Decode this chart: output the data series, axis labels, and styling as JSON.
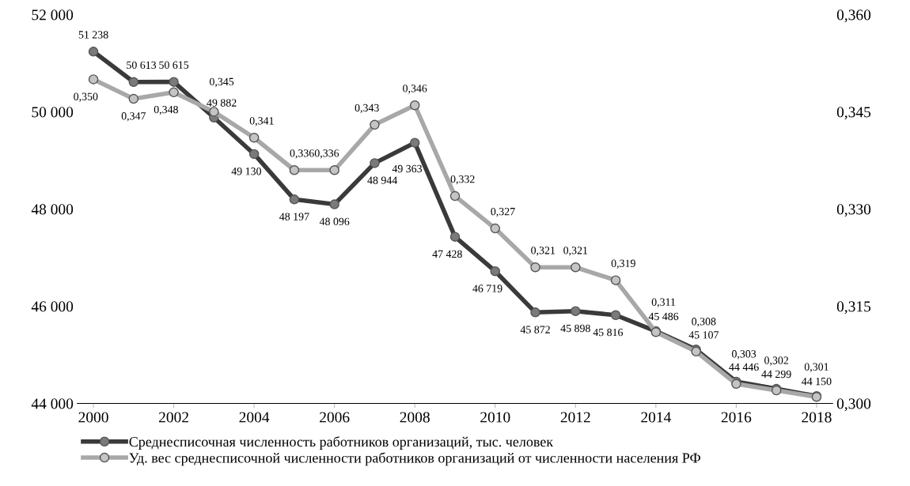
{
  "chart_data": {
    "type": "line",
    "x": [
      2000,
      2001,
      2002,
      2003,
      2004,
      2005,
      2006,
      2007,
      2008,
      2009,
      2010,
      2011,
      2012,
      2013,
      2014,
      2015,
      2016,
      2017,
      2018
    ],
    "xlim": [
      1999.6,
      2018.4
    ],
    "xticks": [
      2000,
      2002,
      2004,
      2006,
      2008,
      2010,
      2012,
      2014,
      2016,
      2018
    ],
    "ylim": [
      44000,
      52000
    ],
    "yticks": [
      {
        "value": 44000,
        "label": "44 000"
      },
      {
        "value": 46000,
        "label": "46 000"
      },
      {
        "value": 48000,
        "label": "48 000"
      },
      {
        "value": 50000,
        "label": "50 000"
      },
      {
        "value": 52000,
        "label": "52 000"
      }
    ],
    "y2lim": [
      0.3,
      0.36
    ],
    "y2ticks": [
      {
        "value": 0.3,
        "label": "0,300"
      },
      {
        "value": 0.315,
        "label": "0,315"
      },
      {
        "value": 0.33,
        "label": "0,330"
      },
      {
        "value": 0.345,
        "label": "0,345"
      },
      {
        "value": 0.36,
        "label": "0,360"
      }
    ],
    "grid": false,
    "legend": "bottom",
    "marker": "circle",
    "line_style": "solid",
    "series": [
      {
        "name": "Среднесписочная численность работников организаций, тыс. человек",
        "color": "#3a3a3a",
        "values": [
          51238,
          50613,
          50615,
          49882,
          49130,
          48197,
          48096,
          48944,
          49363,
          47428,
          46719,
          45872,
          45898,
          45816,
          45486,
          45107,
          44446,
          44299,
          44150
        ],
        "value_labels": [
          "51 238",
          "50 613",
          "50 615",
          "49 882",
          "49 130",
          "48 197",
          "48 096",
          "48 944",
          "49 363",
          "47 428",
          "46 719",
          "45 872",
          "45 898",
          "45 816",
          "45 486",
          "45 107",
          "44 446",
          "44 299",
          "44 150"
        ]
      },
      {
        "name": "Уд. вес среднесписочной численности работников организаций от численности населения РФ",
        "color": "#a8a8a8",
        "axis": "y2",
        "values": [
          0.35,
          0.347,
          0.348,
          0.345,
          0.341,
          0.336,
          0.336,
          0.343,
          0.346,
          0.332,
          0.327,
          0.321,
          0.321,
          0.319,
          0.311,
          0.308,
          0.303,
          0.302,
          0.301
        ],
        "value_labels": [
          "0,350",
          "0,347",
          "0,348",
          "0,345",
          "0,341",
          "0,336",
          "0,336",
          "0,343",
          "0,346",
          "0,332",
          "0,327",
          "0,321",
          "0,321",
          "0,319",
          "0,311",
          "0,308",
          "0,303",
          "0,302",
          "0,301"
        ]
      }
    ]
  }
}
